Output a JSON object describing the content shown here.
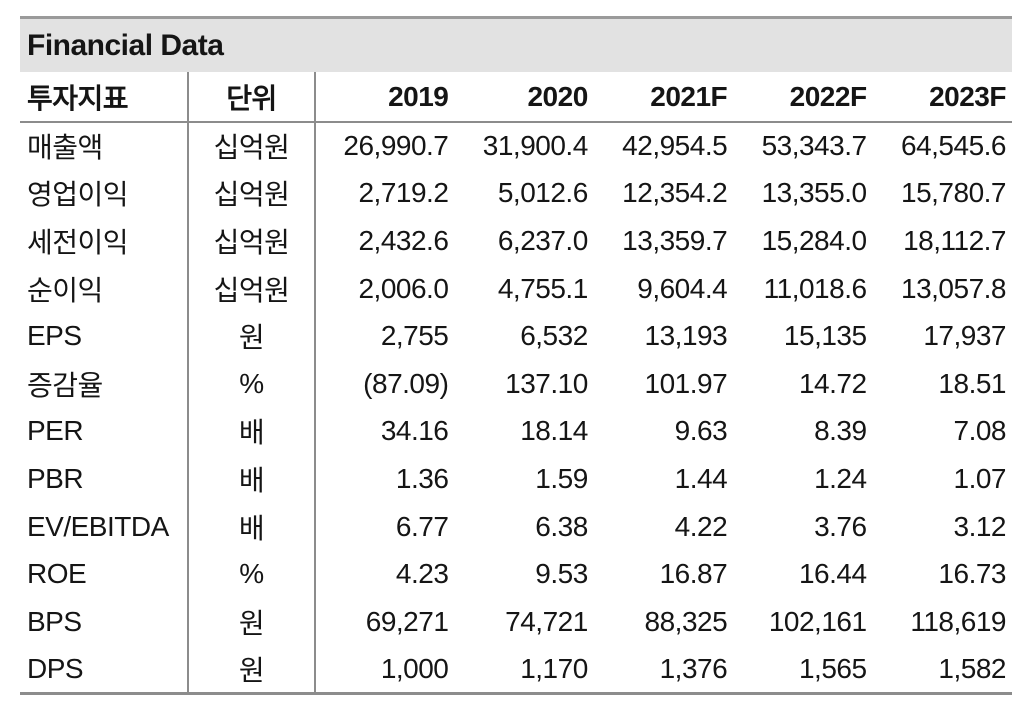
{
  "title": "Financial Data",
  "table": {
    "columns": [
      "투자지표",
      "단위",
      "2019",
      "2020",
      "2021F",
      "2022F",
      "2023F"
    ],
    "rows": [
      {
        "label": "매출액",
        "unit": "십억원",
        "values": [
          "26,990.7",
          "31,900.4",
          "42,954.5",
          "53,343.7",
          "64,545.6"
        ]
      },
      {
        "label": "영업이익",
        "unit": "십억원",
        "values": [
          "2,719.2",
          "5,012.6",
          "12,354.2",
          "13,355.0",
          "15,780.7"
        ]
      },
      {
        "label": "세전이익",
        "unit": "십억원",
        "values": [
          "2,432.6",
          "6,237.0",
          "13,359.7",
          "15,284.0",
          "18,112.7"
        ]
      },
      {
        "label": "순이익",
        "unit": "십억원",
        "values": [
          "2,006.0",
          "4,755.1",
          "9,604.4",
          "11,018.6",
          "13,057.8"
        ]
      },
      {
        "label": "EPS",
        "unit": "원",
        "values": [
          "2,755",
          "6,532",
          "13,193",
          "15,135",
          "17,937"
        ]
      },
      {
        "label": "증감율",
        "unit": "%",
        "values": [
          "(87.09)",
          "137.10",
          "101.97",
          "14.72",
          "18.51"
        ]
      },
      {
        "label": "PER",
        "unit": "배",
        "values": [
          "34.16",
          "18.14",
          "9.63",
          "8.39",
          "7.08"
        ]
      },
      {
        "label": "PBR",
        "unit": "배",
        "values": [
          "1.36",
          "1.59",
          "1.44",
          "1.24",
          "1.07"
        ]
      },
      {
        "label": "EV/EBITDA",
        "unit": "배",
        "values": [
          "6.77",
          "6.38",
          "4.22",
          "3.76",
          "3.12"
        ]
      },
      {
        "label": "ROE",
        "unit": "%",
        "values": [
          "4.23",
          "9.53",
          "16.87",
          "16.44",
          "16.73"
        ]
      },
      {
        "label": "BPS",
        "unit": "원",
        "values": [
          "69,271",
          "74,721",
          "88,325",
          "102,161",
          "118,619"
        ]
      },
      {
        "label": "DPS",
        "unit": "원",
        "values": [
          "1,000",
          "1,170",
          "1,376",
          "1,565",
          "1,582"
        ]
      }
    ]
  },
  "colors": {
    "title_bar_bg": "#e2e2e2",
    "grid_line": "#8c8c8c",
    "top_border": "#9a9a9a",
    "text": "#151515"
  }
}
